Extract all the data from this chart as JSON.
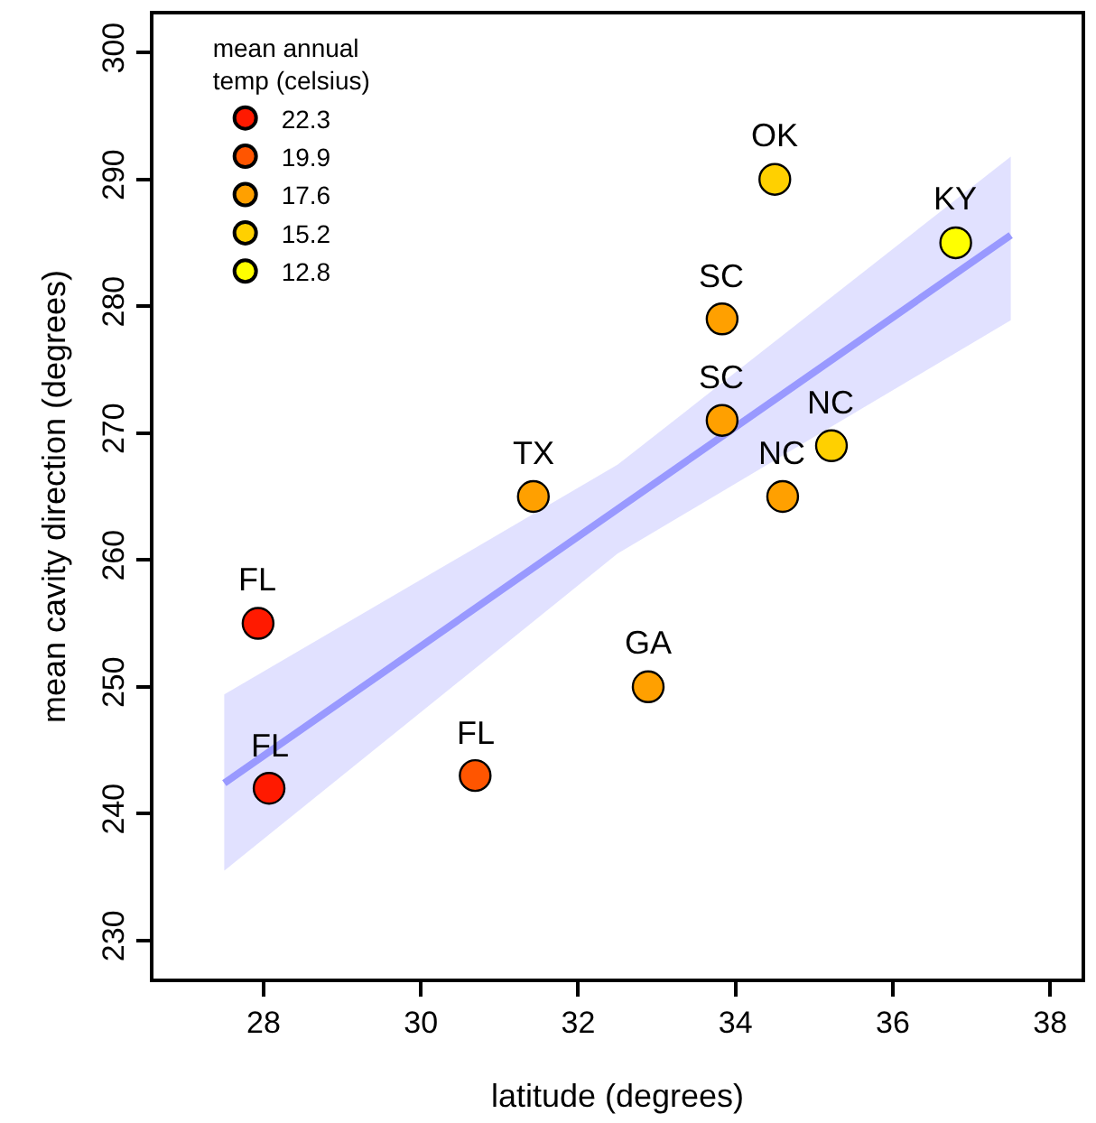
{
  "chart_data": {
    "type": "scatter",
    "xlabel": "latitude (degrees)",
    "ylabel": "mean cavity direction (degrees)",
    "legend_title": "mean annual\ntemp (celsius)",
    "legend": "top left",
    "marker": "circle",
    "xlim": [
      26.6,
      38.4
    ],
    "xticks": [
      28,
      30,
      32,
      34,
      36,
      38
    ],
    "ylim": [
      227,
      303
    ],
    "yticks": [
      230,
      240,
      250,
      260,
      270,
      280,
      290,
      300
    ],
    "series": [
      {
        "type": "line",
        "color": "#9999ff",
        "marker": "none",
        "x": [
          27.5,
          32.5,
          37.5
        ],
        "values": [
          242.4,
          264,
          285.6
        ],
        "lower": [
          235.5,
          260.5,
          278.9
        ],
        "upper": [
          249.4,
          267.5,
          291.8
        ]
      },
      {
        "name": "22.3",
        "color": "#ff1a00",
        "x": [
          27.93,
          28.07
        ],
        "values": [
          255,
          242
        ]
      },
      {
        "name": "19.9",
        "color": "#ff5500",
        "x": [
          30.69
        ],
        "values": [
          243
        ]
      },
      {
        "name": "17.6",
        "color": "#ffa000",
        "x": [
          31.43,
          32.89,
          33.83,
          33.83,
          34.6
        ],
        "values": [
          265,
          250,
          279,
          271,
          265
        ]
      },
      {
        "name": "15.2",
        "color": "#ffd000",
        "x": [
          34.5,
          35.22
        ],
        "values": [
          290,
          269
        ]
      },
      {
        "name": "12.8",
        "color": "#ffff00",
        "x": [
          36.8
        ],
        "values": [
          285
        ]
      }
    ],
    "annotations": [
      {
        "text": "FL",
        "x": 27.93,
        "y": 255
      },
      {
        "text": "FL",
        "x": 28.07,
        "y": 242
      },
      {
        "text": "FL",
        "x": 30.69,
        "y": 243
      },
      {
        "text": "TX",
        "x": 31.43,
        "y": 265
      },
      {
        "text": "GA",
        "x": 32.89,
        "y": 250
      },
      {
        "text": "SC",
        "x": 33.83,
        "y": 279
      },
      {
        "text": "SC",
        "x": 33.83,
        "y": 271
      },
      {
        "text": "NC",
        "x": 34.6,
        "y": 265
      },
      {
        "text": "OK",
        "x": 34.5,
        "y": 290
      },
      {
        "text": "NC",
        "x": 35.22,
        "y": 269
      },
      {
        "text": "KY",
        "x": 36.8,
        "y": 285
      }
    ]
  }
}
